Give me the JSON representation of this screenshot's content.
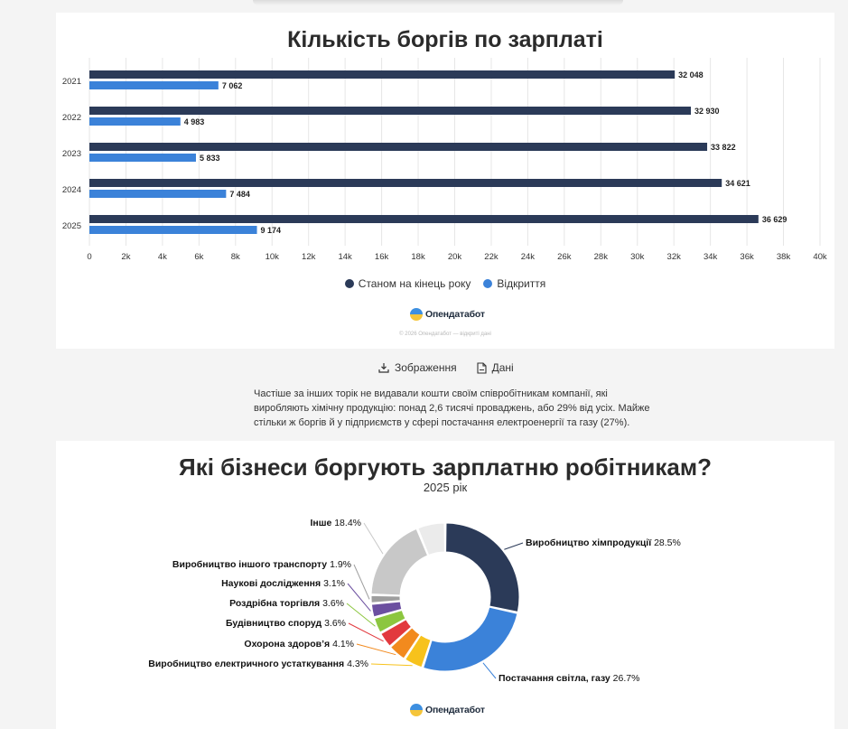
{
  "chart_data": [
    {
      "type": "bar",
      "orientation": "horizontal",
      "title": "Кількість боргів по зарплаті",
      "categories": [
        "2021",
        "2022",
        "2023",
        "2024",
        "2025"
      ],
      "series": [
        {
          "name": "Станом на кінець року",
          "color": "#2b3a58",
          "values": [
            32048,
            32930,
            33822,
            34621,
            36629
          ],
          "labels": [
            "32 048",
            "32 930",
            "33 822",
            "34 621",
            "36 629"
          ]
        },
        {
          "name": "Відкриття",
          "color": "#3b82d9",
          "values": [
            7062,
            4983,
            5833,
            7484,
            9174
          ],
          "labels": [
            "7 062",
            "4 983",
            "5 833",
            "7 484",
            "9 174"
          ]
        }
      ],
      "xlim": [
        0,
        40000
      ],
      "xticks": [
        0,
        2000,
        4000,
        6000,
        8000,
        10000,
        12000,
        14000,
        16000,
        18000,
        20000,
        22000,
        24000,
        26000,
        28000,
        30000,
        32000,
        34000,
        36000,
        38000,
        40000
      ],
      "xtick_labels": [
        "0",
        "2k",
        "4k",
        "6k",
        "8k",
        "10k",
        "12k",
        "14k",
        "16k",
        "18k",
        "20k",
        "22k",
        "24k",
        "26k",
        "28k",
        "30k",
        "32k",
        "34k",
        "36k",
        "38k",
        "40k"
      ],
      "grid": true,
      "legend": "bottom-center"
    },
    {
      "type": "pie",
      "donut": true,
      "title": "Які бізнеси боргують зарплатню робітникам?",
      "subtitle": "2025 рік",
      "slices": [
        {
          "label": "Виробництво хімпродукції",
          "value": 28.5,
          "value_label": "28.5%",
          "color": "#2b3a58"
        },
        {
          "label": "Постачання світла, газу",
          "value": 26.7,
          "value_label": "26.7%",
          "color": "#3b82d9"
        },
        {
          "label": "Виробництво електричного устаткування",
          "value": 4.3,
          "value_label": "4.3%",
          "color": "#f7c21c"
        },
        {
          "label": "Охорона здоров’я",
          "value": 4.1,
          "value_label": "4.1%",
          "color": "#f28a1e"
        },
        {
          "label": "Будівництво споруд",
          "value": 3.6,
          "value_label": "3.6%",
          "color": "#e2393e"
        },
        {
          "label": "Роздрібна торгівля",
          "value": 3.6,
          "value_label": "3.6%",
          "color": "#8cc63f"
        },
        {
          "label": "Наукові дослідження",
          "value": 3.1,
          "value_label": "3.1%",
          "color": "#6b4fa0"
        },
        {
          "label": "Виробництво іншого транспорту",
          "value": 1.9,
          "value_label": "1.9%",
          "color": "#9e9e9e"
        },
        {
          "label": "Інше",
          "value": 18.4,
          "value_label": "18.4%",
          "color": "#c8c8c8"
        },
        {
          "label": "",
          "value": 6.2,
          "value_label": "",
          "color": "#ebebeb"
        }
      ]
    }
  ],
  "branding": {
    "logo_text": "Опендатабот",
    "copyright": "© 2026 Опендатабот — відкриті дані"
  },
  "actions": {
    "image_label": "Зображення",
    "data_label": "Дані"
  },
  "paragraph": "Частіше за інших торік не видавали кошти своїм співробітникам компанії, які виробляють хімічну продукцію: понад 2,6 тисячі проваджень, або 29% від усіх. Майже стільки ж боргів й у підприємств у сфері постачання електроенергії та газу (27%)."
}
